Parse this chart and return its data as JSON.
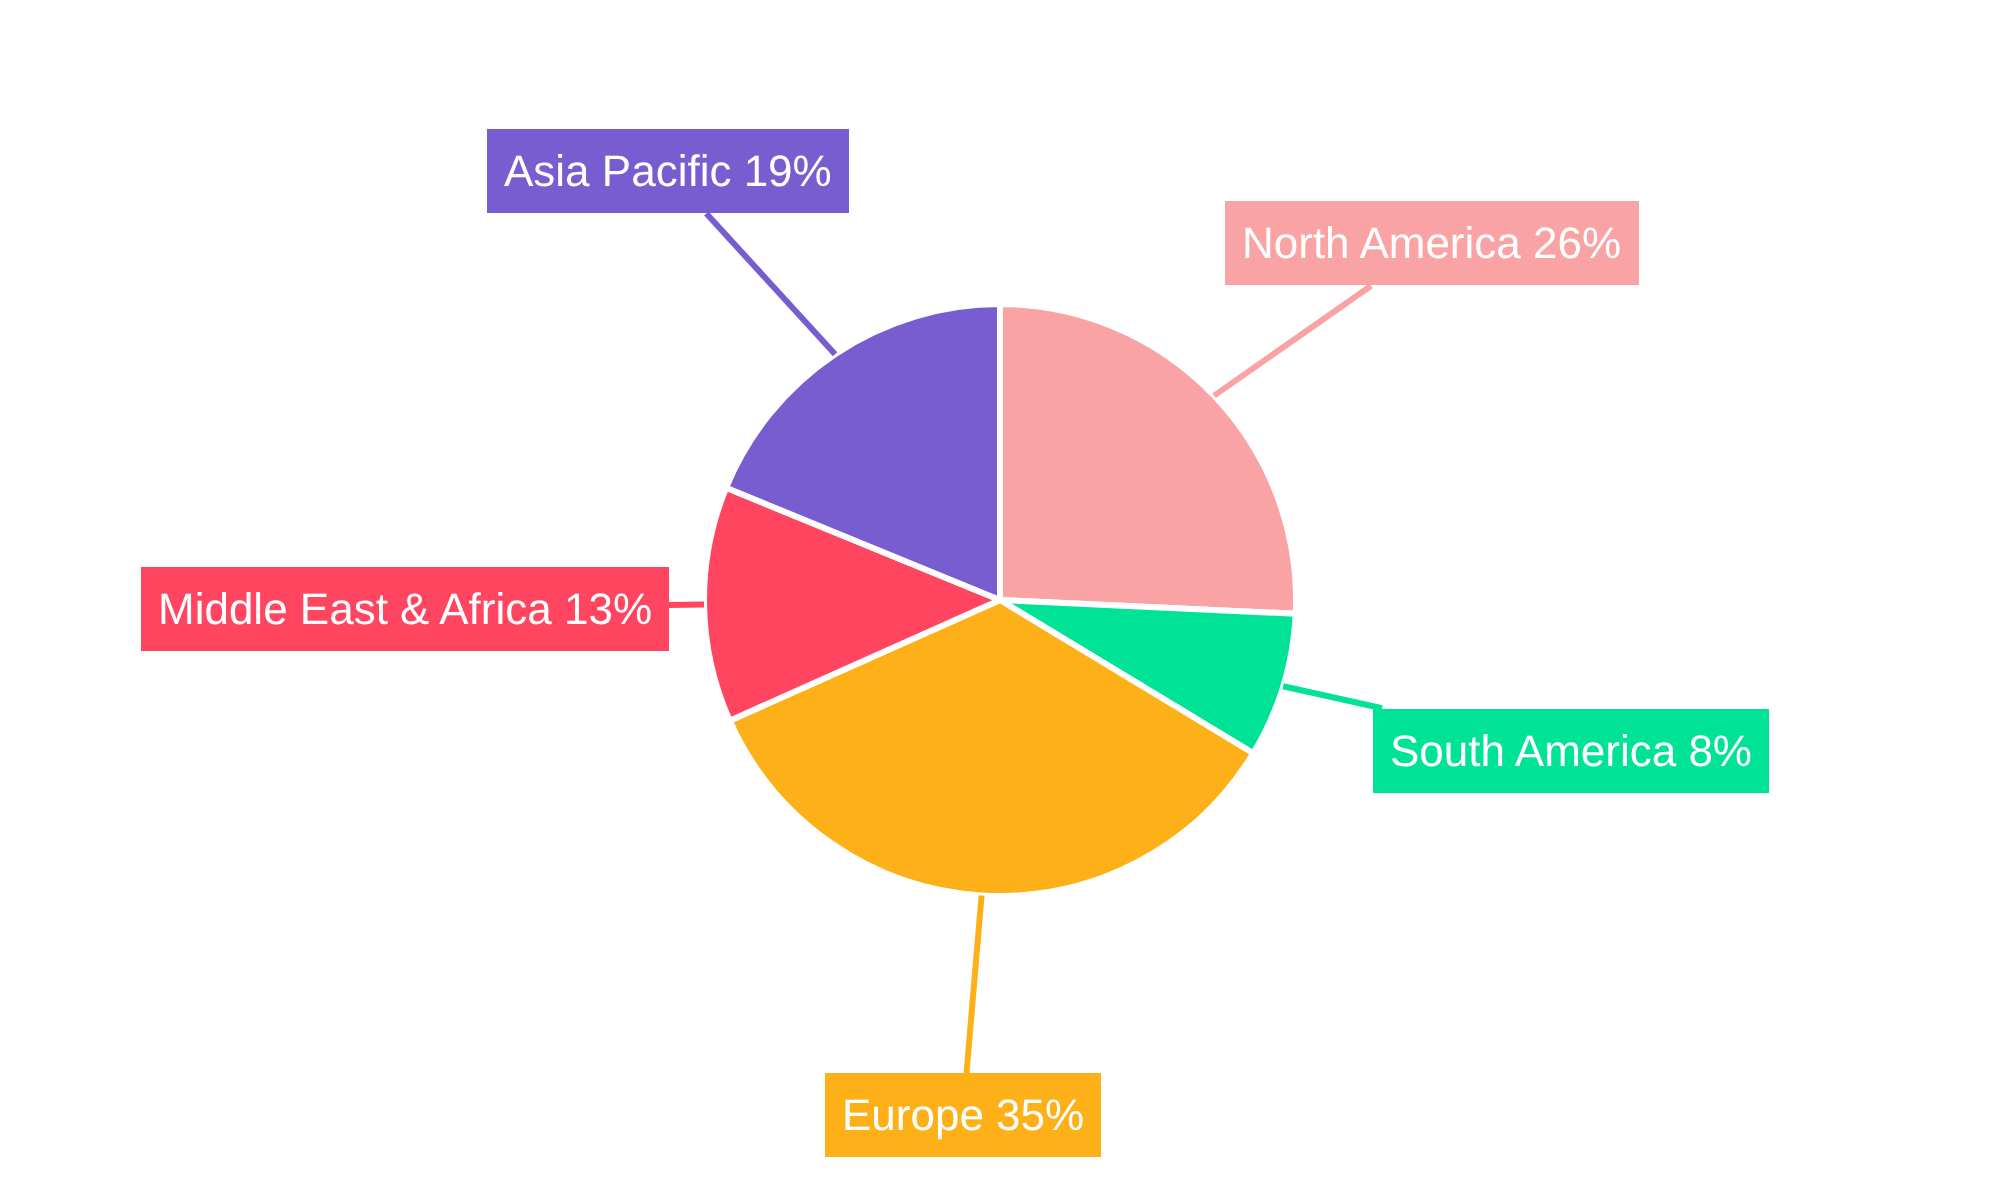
{
  "chart_data": {
    "type": "pie",
    "categories": [
      "North America",
      "South America",
      "Europe",
      "Middle East & Africa",
      "Asia Pacific"
    ],
    "values": [
      26,
      8,
      35,
      13,
      19
    ],
    "value_labels": [
      "26%",
      "8%",
      "35%",
      "13%",
      "19%"
    ],
    "colors": [
      "#f9a3a4",
      "#00e396",
      "#feb019",
      "#ff4560",
      "#775dd0"
    ],
    "legend": false
  }
}
